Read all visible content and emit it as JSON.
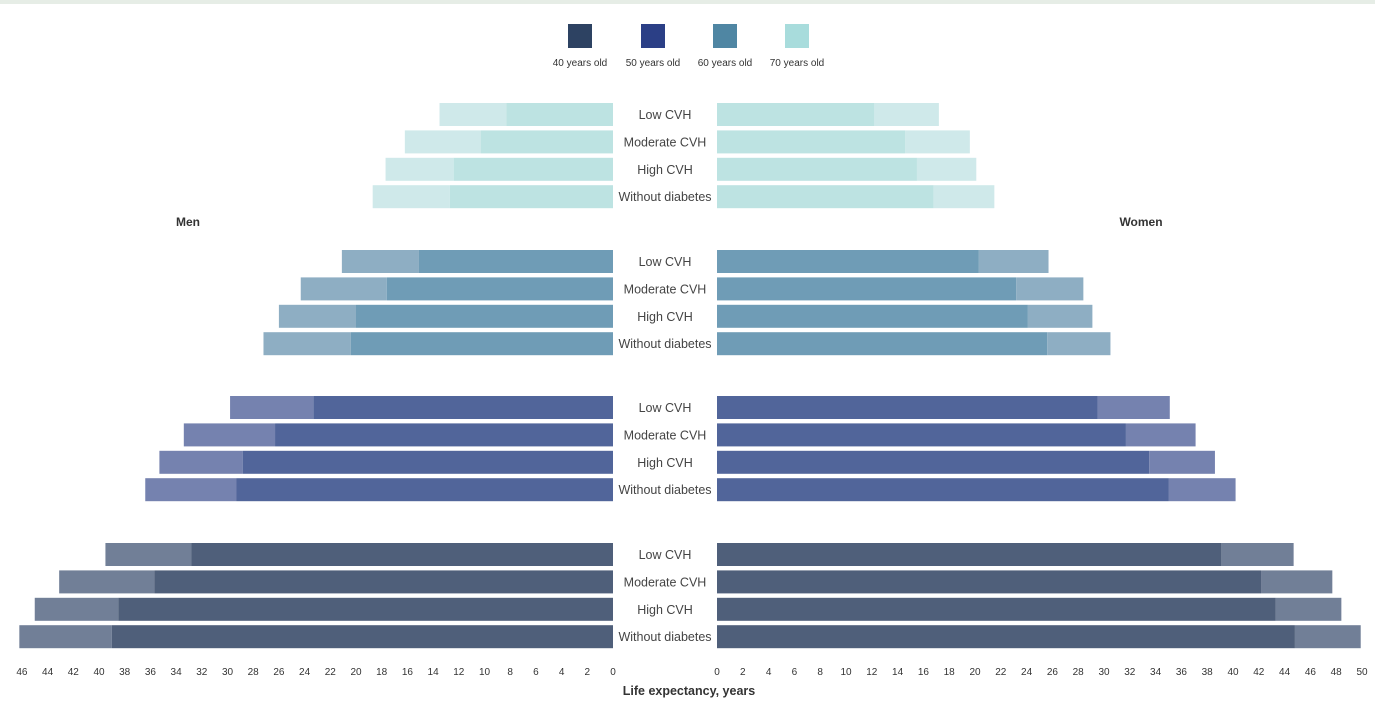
{
  "chart_data": {
    "type": "bar",
    "subtype": "population-pyramid",
    "xlabel": "Life expectancy, years",
    "left_title": "Men",
    "right_title": "Women",
    "categories": [
      "Low CVH",
      "Moderate CVH",
      "High CVH",
      "Without diabetes"
    ],
    "legend": [
      {
        "name": "40 years old",
        "color": "#2d4262"
      },
      {
        "name": "50 years old",
        "color": "#2b3f86"
      },
      {
        "name": "60 years old",
        "color": "#4f86a3"
      },
      {
        "name": "70 years old",
        "color": "#a8dcdc"
      }
    ],
    "groups": [
      {
        "age": "70 years old",
        "colors": {
          "main": "#bde3e2",
          "ext": "#cfe9ea"
        },
        "men": [
          {
            "category": "Low CVH",
            "value": 8.3,
            "total": 13.5
          },
          {
            "category": "Moderate CVH",
            "value": 10.3,
            "total": 16.2
          },
          {
            "category": "High CVH",
            "value": 12.4,
            "total": 17.7
          },
          {
            "category": "Without diabetes",
            "value": 12.7,
            "total": 18.7
          }
        ],
        "women": [
          {
            "category": "Low CVH",
            "value": 12.2,
            "total": 17.2
          },
          {
            "category": "Moderate CVH",
            "value": 14.6,
            "total": 19.6
          },
          {
            "category": "High CVH",
            "value": 15.5,
            "total": 20.1
          },
          {
            "category": "Without diabetes",
            "value": 16.8,
            "total": 21.5
          }
        ]
      },
      {
        "age": "60 years old",
        "colors": {
          "main": "#6f9cb6",
          "ext": "#8eaec3"
        },
        "men": [
          {
            "category": "Low CVH",
            "value": 15.1,
            "total": 21.1
          },
          {
            "category": "Moderate CVH",
            "value": 17.6,
            "total": 24.3
          },
          {
            "category": "High CVH",
            "value": 20.0,
            "total": 26.0
          },
          {
            "category": "Without diabetes",
            "value": 20.4,
            "total": 27.2
          }
        ],
        "women": [
          {
            "category": "Low CVH",
            "value": 20.3,
            "total": 25.7
          },
          {
            "category": "Moderate CVH",
            "value": 23.2,
            "total": 28.4
          },
          {
            "category": "High CVH",
            "value": 24.1,
            "total": 29.1
          },
          {
            "category": "Without diabetes",
            "value": 25.6,
            "total": 30.5
          }
        ]
      },
      {
        "age": "50 years old",
        "colors": {
          "main": "#51659a",
          "ext": "#7582af"
        },
        "men": [
          {
            "category": "Low CVH",
            "value": 23.3,
            "total": 29.8
          },
          {
            "category": "Moderate CVH",
            "value": 26.3,
            "total": 33.4
          },
          {
            "category": "High CVH",
            "value": 28.8,
            "total": 35.3
          },
          {
            "category": "Without diabetes",
            "value": 29.3,
            "total": 36.4
          }
        ],
        "women": [
          {
            "category": "Low CVH",
            "value": 29.5,
            "total": 35.1
          },
          {
            "category": "Moderate CVH",
            "value": 31.7,
            "total": 37.1
          },
          {
            "category": "High CVH",
            "value": 33.5,
            "total": 38.6
          },
          {
            "category": "Without diabetes",
            "value": 35.0,
            "total": 40.2
          }
        ]
      },
      {
        "age": "40 years old",
        "colors": {
          "main": "#4f5f7a",
          "ext": "#717f97"
        },
        "men": [
          {
            "category": "Low CVH",
            "value": 32.8,
            "total": 39.5
          },
          {
            "category": "Moderate CVH",
            "value": 35.7,
            "total": 43.1
          },
          {
            "category": "High CVH",
            "value": 38.5,
            "total": 45.0
          },
          {
            "category": "Without diabetes",
            "value": 39.0,
            "total": 46.2
          }
        ],
        "women": [
          {
            "category": "Low CVH",
            "value": 39.1,
            "total": 44.7
          },
          {
            "category": "Moderate CVH",
            "value": 42.2,
            "total": 47.7
          },
          {
            "category": "High CVH",
            "value": 43.3,
            "total": 48.4
          },
          {
            "category": "Without diabetes",
            "value": 44.8,
            "total": 49.9
          }
        ]
      }
    ],
    "men_axis": {
      "ticks": [
        "46",
        "44",
        "42",
        "40",
        "38",
        "36",
        "34",
        "32",
        "30",
        "28",
        "26",
        "24",
        "22",
        "20",
        "18",
        "16",
        "14",
        "12",
        "10",
        "8",
        "6",
        "4",
        "2",
        "0"
      ],
      "range": [
        0,
        46.5
      ]
    },
    "women_axis": {
      "ticks": [
        "0",
        "2",
        "4",
        "6",
        "8",
        "10",
        "12",
        "14",
        "16",
        "18",
        "20",
        "22",
        "24",
        "26",
        "28",
        "30",
        "32",
        "34",
        "36",
        "38",
        "40",
        "42",
        "44",
        "46",
        "48",
        "50"
      ],
      "range": [
        0,
        50
      ]
    },
    "grid": false,
    "legend_position": "top-center"
  }
}
